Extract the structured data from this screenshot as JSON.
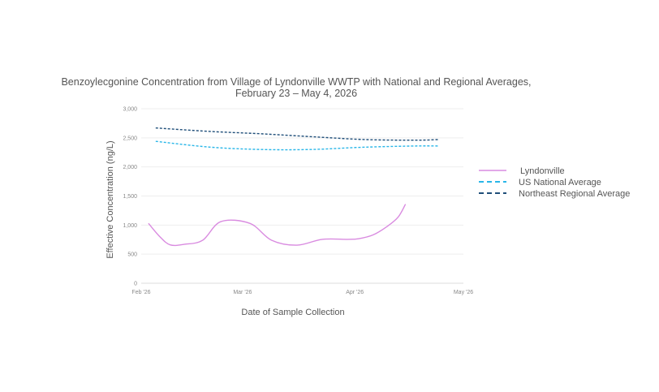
{
  "chart_data": {
    "type": "line",
    "title_lines": [
      "Benzoylecgonine Concentration from Village of Lyndonville WWTP with National and Regional Averages,",
      "February 23 – May 4, 2026"
    ],
    "xlabel": "Date of Sample Collection",
    "ylabel": "Effective Concentration (ng/L)",
    "ylim": [
      0,
      3000
    ],
    "yticks": [
      0,
      500,
      1000,
      1500,
      2000,
      2500,
      3000
    ],
    "ytick_labels": [
      "0",
      "500",
      "1,000",
      "1,500",
      "2,000",
      "2,500",
      "3,000"
    ],
    "xlim": [
      "2026-02-01",
      "2026-05-01"
    ],
    "xticks": [
      "2026-02-01",
      "2026-03-01",
      "2026-04-01",
      "2026-05-01"
    ],
    "xtick_labels": [
      "Feb '26",
      "Mar '26",
      "Apr '26",
      "May '26"
    ],
    "grid": true,
    "legend_position": "right",
    "series": [
      {
        "name": "Lyndonville",
        "color": "#d98be0",
        "dash": "solid",
        "points": [
          [
            "2026-02-03",
            1030
          ],
          [
            "2026-02-06",
            810
          ],
          [
            "2026-02-09",
            660
          ],
          [
            "2026-02-13",
            670
          ],
          [
            "2026-02-18",
            740
          ],
          [
            "2026-02-23",
            1060
          ],
          [
            "2026-03-03",
            1030
          ],
          [
            "2026-03-09",
            740
          ],
          [
            "2026-03-16",
            655
          ],
          [
            "2026-03-23",
            755
          ],
          [
            "2026-03-30",
            755
          ],
          [
            "2026-04-02",
            765
          ],
          [
            "2026-04-06",
            830
          ],
          [
            "2026-04-10",
            980
          ],
          [
            "2026-04-13",
            1140
          ],
          [
            "2026-04-15",
            1360
          ]
        ]
      },
      {
        "name": "US National Average",
        "color": "#29b6e8",
        "dash": "3,2",
        "points": [
          [
            "2026-02-05",
            2440
          ],
          [
            "2026-02-20",
            2340
          ],
          [
            "2026-03-06",
            2300
          ],
          [
            "2026-03-20",
            2300
          ],
          [
            "2026-04-04",
            2340
          ],
          [
            "2026-04-18",
            2360
          ],
          [
            "2026-04-24",
            2360
          ]
        ]
      },
      {
        "name": "Northeast Regional Average",
        "color": "#1f4e79",
        "dash": "3,2",
        "points": [
          [
            "2026-02-05",
            2670
          ],
          [
            "2026-02-20",
            2610
          ],
          [
            "2026-03-06",
            2570
          ],
          [
            "2026-03-20",
            2520
          ],
          [
            "2026-04-04",
            2470
          ],
          [
            "2026-04-18",
            2460
          ],
          [
            "2026-04-24",
            2470
          ]
        ]
      }
    ]
  }
}
